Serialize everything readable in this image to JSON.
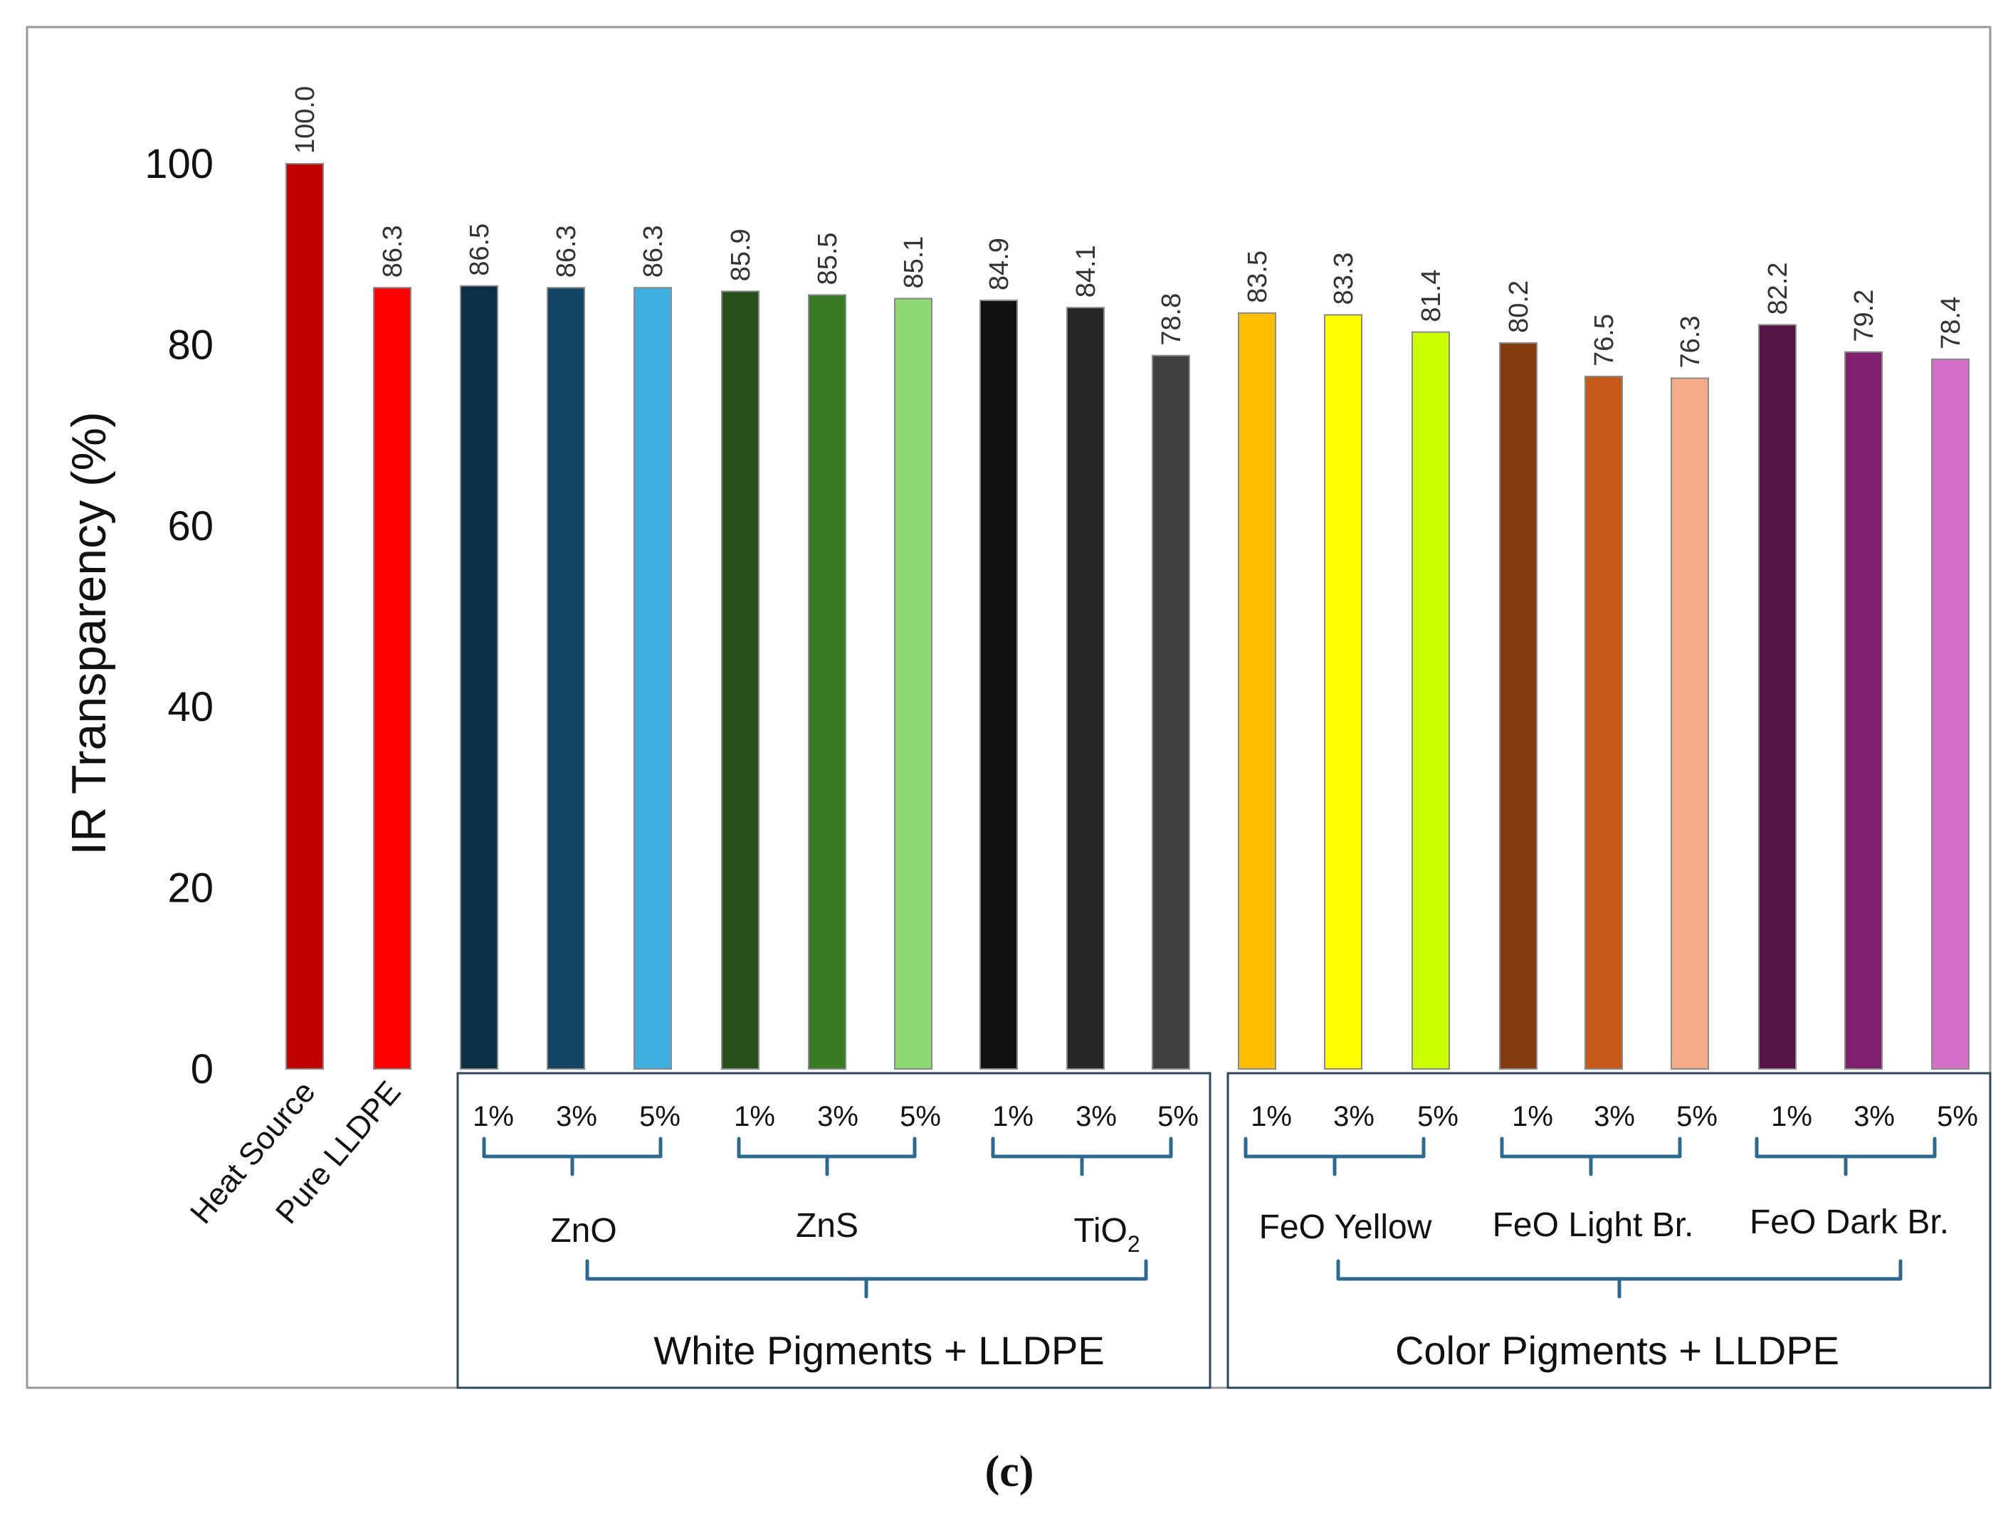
{
  "chart_data": {
    "type": "bar",
    "ylabel": "IR Transparency (%)",
    "ylim": [
      0,
      100
    ],
    "yticks": [
      0,
      20,
      40,
      60,
      80,
      100
    ],
    "grid": false,
    "bars": [
      {
        "value": 100.0,
        "label": "100.0",
        "color": "#c00000"
      },
      {
        "value": 86.3,
        "label": "86.3",
        "color": "#ff0000"
      },
      {
        "value": 86.5,
        "label": "86.5",
        "color": "#0d2f45"
      },
      {
        "value": 86.3,
        "label": "86.3",
        "color": "#134563"
      },
      {
        "value": 86.3,
        "label": "86.3",
        "color": "#41aee0"
      },
      {
        "value": 85.9,
        "label": "85.9",
        "color": "#27501b"
      },
      {
        "value": 85.5,
        "label": "85.5",
        "color": "#3b7a25"
      },
      {
        "value": 85.1,
        "label": "85.1",
        "color": "#8fd876"
      },
      {
        "value": 84.9,
        "label": "84.9",
        "color": "#111111"
      },
      {
        "value": 84.1,
        "label": "84.1",
        "color": "#262626"
      },
      {
        "value": 78.8,
        "label": "78.8",
        "color": "#404040"
      },
      {
        "value": 83.5,
        "label": "83.5",
        "color": "#ffbf00"
      },
      {
        "value": 83.3,
        "label": "83.3",
        "color": "#ffff00"
      },
      {
        "value": 81.4,
        "label": "81.4",
        "color": "#ccff00"
      },
      {
        "value": 80.2,
        "label": "80.2",
        "color": "#833c11"
      },
      {
        "value": 76.5,
        "label": "76.5",
        "color": "#c55a1a"
      },
      {
        "value": 76.3,
        "label": "76.3",
        "color": "#f4ab88"
      },
      {
        "value": 82.2,
        "label": "82.2",
        "color": "#541546"
      },
      {
        "value": 79.2,
        "label": "79.2",
        "color": "#7e206d"
      },
      {
        "value": 78.4,
        "label": "78.4",
        "color": "#d46fc8"
      }
    ],
    "rotated_categories": [
      "Heat Source",
      "Pure LLDPE"
    ],
    "concentrations": [
      "1%",
      "3%",
      "5%"
    ],
    "groups": [
      "ZnO",
      "ZnS",
      "TiO",
      "FeO Yellow",
      "FeO Light Br.",
      "FeO Dark Br."
    ],
    "tio2_subscript": "2",
    "sections": [
      "White Pigments + LLDPE",
      "Color Pigments + LLDPE"
    ]
  },
  "caption": "(c)"
}
